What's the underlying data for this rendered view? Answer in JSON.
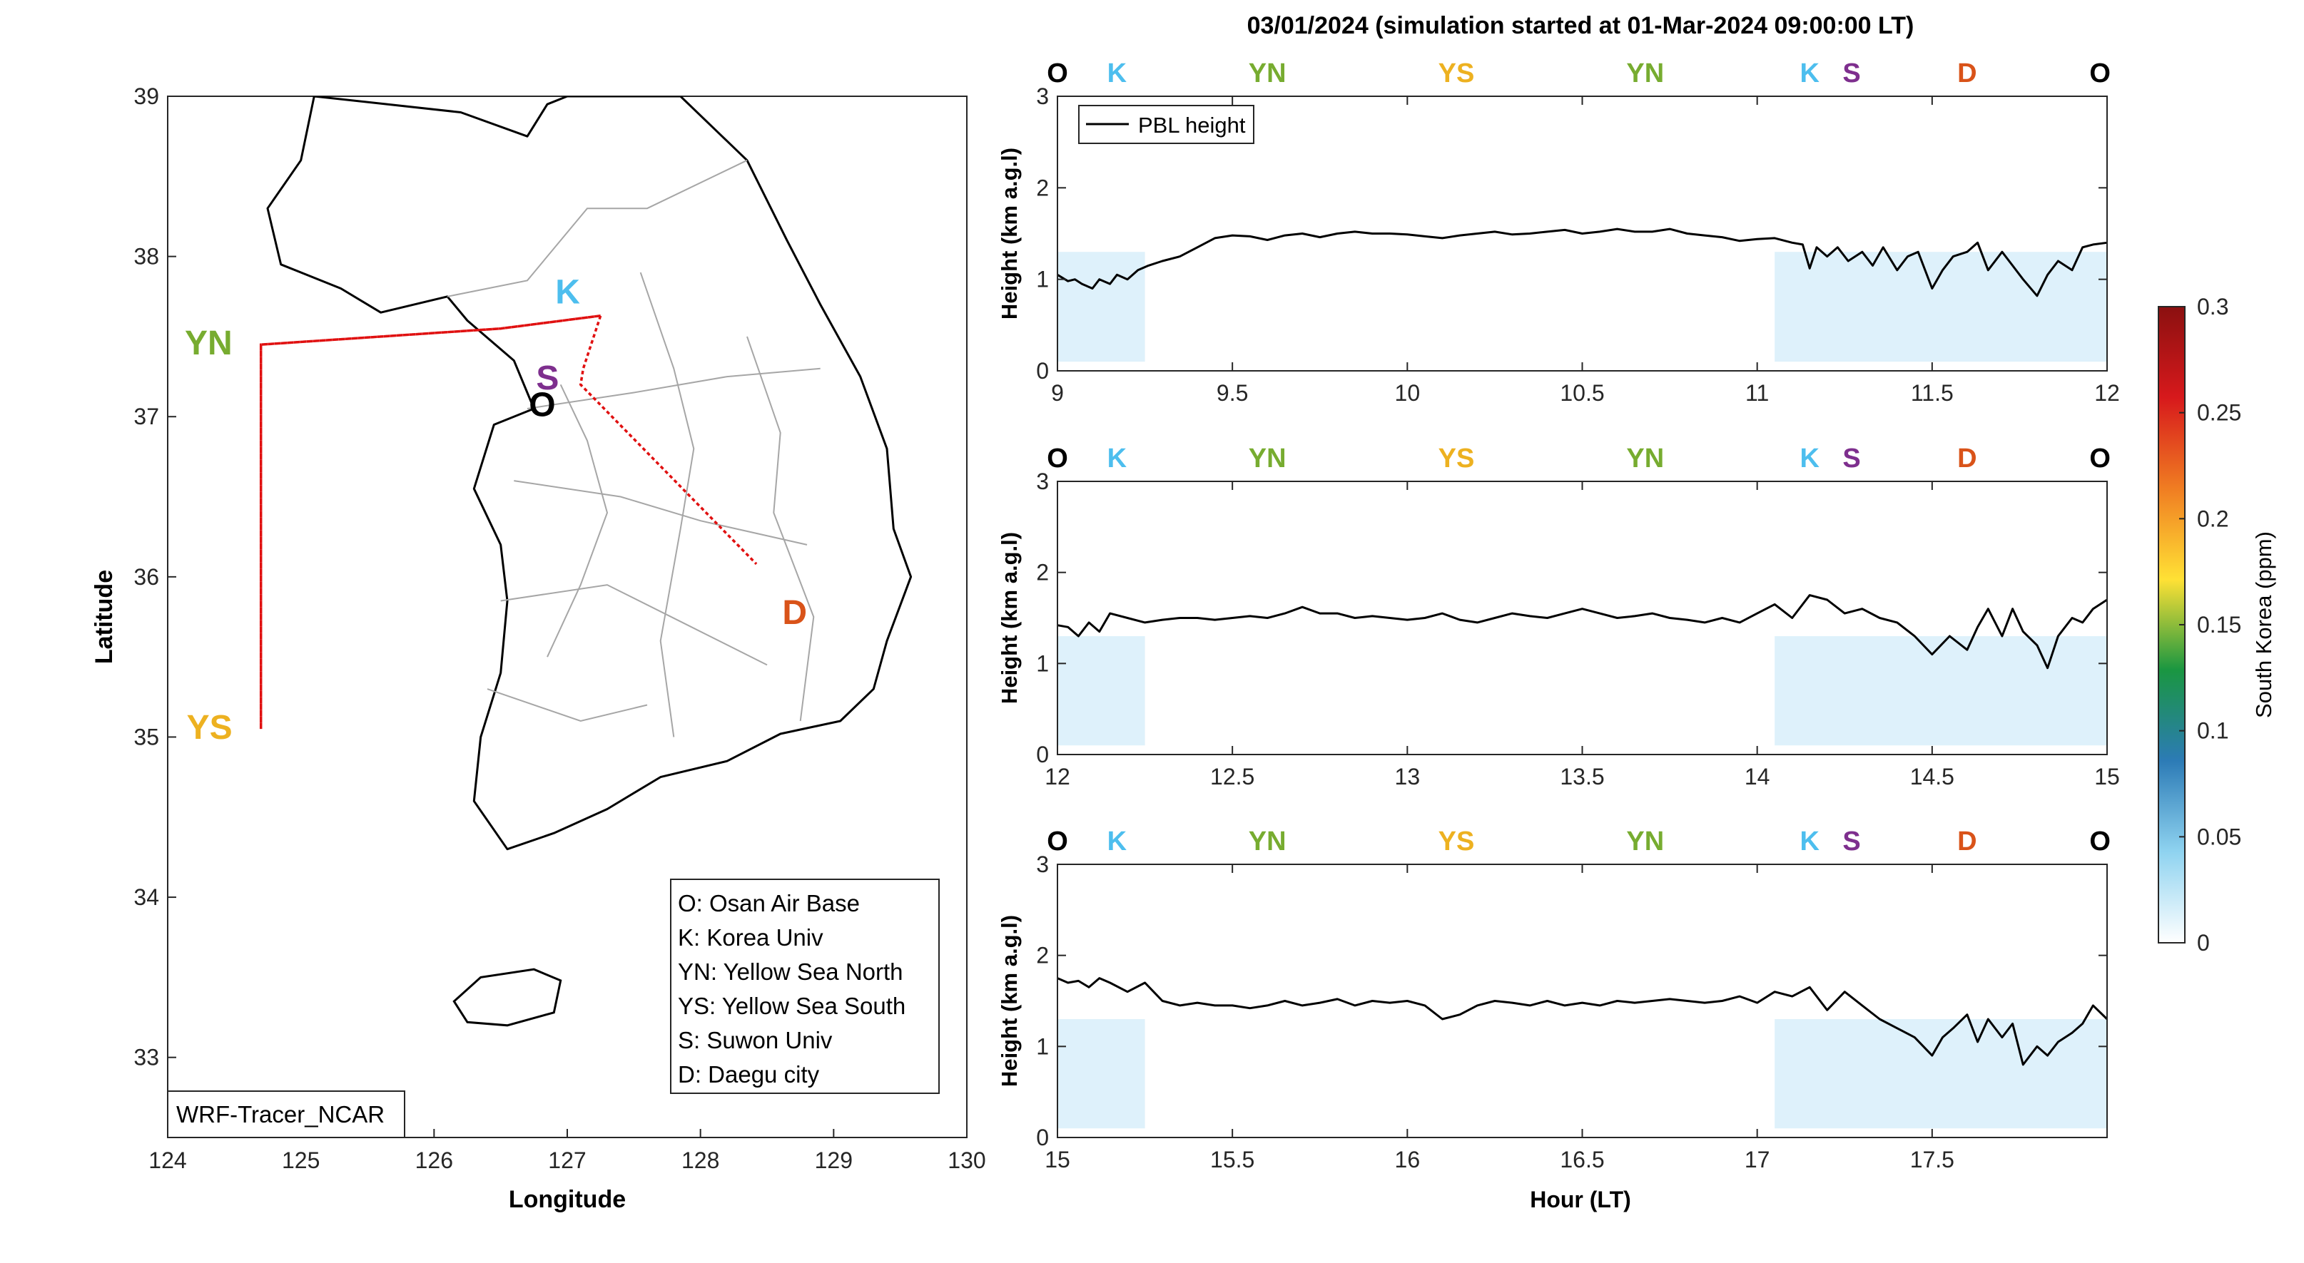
{
  "title": "03/01/2024 (simulation started at 01-Mar-2024 09:00:00 LT)",
  "colors": {
    "O": "#000000",
    "K": "#4DBEEE",
    "YN": "#77AC30",
    "YS": "#EDB120",
    "S": "#7E2F8E",
    "D": "#D95319",
    "track": "#e01010"
  },
  "chart_data": [
    {
      "type": "map",
      "xlabel": "Longitude",
      "ylabel": "Latitude",
      "xlim": [
        124,
        130
      ],
      "ylim": [
        32.5,
        39
      ],
      "xticks": [
        "124",
        "125",
        "126",
        "127",
        "128",
        "129",
        "130"
      ],
      "yticks": [
        "33",
        "34",
        "35",
        "36",
        "37",
        "38",
        "39"
      ],
      "sites": [
        {
          "label": "O",
          "lon": 126.9,
          "lat": 37.08
        },
        {
          "label": "K",
          "lon": 127.03,
          "lat": 37.59
        },
        {
          "label": "YN",
          "lon": 124.7,
          "lat": 37.45
        },
        {
          "label": "YS",
          "lon": 124.7,
          "lat": 35.05
        },
        {
          "label": "S",
          "lon": 126.97,
          "lat": 37.25
        },
        {
          "label": "D",
          "lon": 128.6,
          "lat": 35.87
        }
      ],
      "flight_track": [
        {
          "lon": 127.25,
          "lat": 37.63
        },
        {
          "lon": 126.5,
          "lat": 37.55
        },
        {
          "lon": 124.7,
          "lat": 37.45
        },
        {
          "lon": 124.7,
          "lat": 35.05
        },
        {
          "lon": 124.7,
          "lat": 37.45
        },
        {
          "lon": 126.5,
          "lat": 37.55
        },
        {
          "lon": 127.25,
          "lat": 37.63
        },
        {
          "lon": 127.12,
          "lat": 37.3
        },
        {
          "lon": 127.1,
          "lat": 37.2
        },
        {
          "lon": 128.42,
          "lat": 36.08
        }
      ],
      "legend": [
        "O: Osan Air Base",
        "K: Korea Univ",
        "YN: Yellow Sea North",
        "YS: Yellow Sea South",
        "S: Suwon Univ",
        "D: Daegu city"
      ],
      "model_label": "WRF-Tracer_NCAR"
    },
    {
      "type": "line",
      "ylabel": "Height (km a.g.l)",
      "xlim": [
        9,
        12
      ],
      "ylim": [
        0,
        3
      ],
      "xticks": [
        "9",
        "9.5",
        "10",
        "10.5",
        "11",
        "11.5",
        "12"
      ],
      "yticks": [
        "0",
        "1",
        "2",
        "3"
      ],
      "site_markers": [
        {
          "label": "O",
          "x": 9.0
        },
        {
          "label": "K",
          "x": 9.17
        },
        {
          "label": "YN",
          "x": 9.6
        },
        {
          "label": "YS",
          "x": 10.14
        },
        {
          "label": "YN",
          "x": 10.68
        },
        {
          "label": "K",
          "x": 11.15
        },
        {
          "label": "S",
          "x": 11.27
        },
        {
          "label": "D",
          "x": 11.6
        },
        {
          "label": "O",
          "x": 11.98
        }
      ],
      "legend": [
        "PBL height"
      ],
      "series": [
        {
          "name": "PBL height",
          "x": [
            9.0,
            9.03,
            9.05,
            9.07,
            9.1,
            9.12,
            9.15,
            9.17,
            9.2,
            9.23,
            9.26,
            9.3,
            9.35,
            9.4,
            9.45,
            9.5,
            9.55,
            9.6,
            9.65,
            9.7,
            9.75,
            9.8,
            9.85,
            9.9,
            9.95,
            10.0,
            10.05,
            10.1,
            10.15,
            10.2,
            10.25,
            10.3,
            10.35,
            10.4,
            10.45,
            10.5,
            10.55,
            10.6,
            10.65,
            10.7,
            10.75,
            10.8,
            10.85,
            10.9,
            10.95,
            11.0,
            11.05,
            11.1,
            11.13,
            11.15,
            11.17,
            11.2,
            11.23,
            11.26,
            11.3,
            11.33,
            11.36,
            11.4,
            11.43,
            11.46,
            11.5,
            11.53,
            11.56,
            11.6,
            11.63,
            11.66,
            11.7,
            11.73,
            11.76,
            11.8,
            11.83,
            11.86,
            11.9,
            11.93,
            11.96,
            12.0
          ],
          "values": [
            1.05,
            0.98,
            1.0,
            0.95,
            0.9,
            1.0,
            0.95,
            1.05,
            1.0,
            1.1,
            1.15,
            1.2,
            1.25,
            1.35,
            1.45,
            1.48,
            1.47,
            1.43,
            1.48,
            1.5,
            1.46,
            1.5,
            1.52,
            1.5,
            1.5,
            1.49,
            1.47,
            1.45,
            1.48,
            1.5,
            1.52,
            1.49,
            1.5,
            1.52,
            1.54,
            1.5,
            1.52,
            1.55,
            1.52,
            1.52,
            1.55,
            1.5,
            1.48,
            1.46,
            1.42,
            1.44,
            1.45,
            1.4,
            1.38,
            1.12,
            1.35,
            1.25,
            1.35,
            1.2,
            1.3,
            1.15,
            1.35,
            1.1,
            1.25,
            1.3,
            0.9,
            1.1,
            1.25,
            1.3,
            1.4,
            1.1,
            1.3,
            1.15,
            1.0,
            0.82,
            1.05,
            1.2,
            1.1,
            1.35,
            1.38,
            1.4
          ]
        }
      ],
      "concentration_fields": [
        {
          "x0": 9.0,
          "x1": 9.25,
          "level": 0.02
        },
        {
          "x0": 11.05,
          "x1": 12.0,
          "level": 0.015
        }
      ]
    },
    {
      "type": "line",
      "ylabel": "Height (km a.g.l)",
      "xlim": [
        12,
        15
      ],
      "ylim": [
        0,
        3
      ],
      "xticks": [
        "12",
        "12.5",
        "13",
        "13.5",
        "14",
        "14.5",
        "15"
      ],
      "yticks": [
        "0",
        "1",
        "2",
        "3"
      ],
      "site_markers": [
        {
          "label": "O",
          "x": 12.0
        },
        {
          "label": "K",
          "x": 12.17
        },
        {
          "label": "YN",
          "x": 12.6
        },
        {
          "label": "YS",
          "x": 13.14
        },
        {
          "label": "YN",
          "x": 13.68
        },
        {
          "label": "K",
          "x": 14.15
        },
        {
          "label": "S",
          "x": 14.27
        },
        {
          "label": "D",
          "x": 14.6
        },
        {
          "label": "O",
          "x": 14.98
        }
      ],
      "series": [
        {
          "name": "PBL height",
          "x": [
            12.0,
            12.03,
            12.06,
            12.09,
            12.12,
            12.15,
            12.2,
            12.25,
            12.3,
            12.35,
            12.4,
            12.45,
            12.5,
            12.55,
            12.6,
            12.65,
            12.7,
            12.75,
            12.8,
            12.85,
            12.9,
            12.95,
            13.0,
            13.05,
            13.1,
            13.15,
            13.2,
            13.25,
            13.3,
            13.35,
            13.4,
            13.45,
            13.5,
            13.55,
            13.6,
            13.65,
            13.7,
            13.75,
            13.8,
            13.85,
            13.9,
            13.95,
            14.0,
            14.05,
            14.1,
            14.15,
            14.2,
            14.25,
            14.3,
            14.35,
            14.4,
            14.45,
            14.5,
            14.55,
            14.6,
            14.63,
            14.66,
            14.7,
            14.73,
            14.76,
            14.8,
            14.83,
            14.86,
            14.9,
            14.93,
            14.96,
            15.0
          ],
          "values": [
            1.42,
            1.4,
            1.3,
            1.45,
            1.35,
            1.55,
            1.5,
            1.45,
            1.48,
            1.5,
            1.5,
            1.48,
            1.5,
            1.52,
            1.5,
            1.55,
            1.62,
            1.55,
            1.55,
            1.5,
            1.52,
            1.5,
            1.48,
            1.5,
            1.55,
            1.48,
            1.45,
            1.5,
            1.55,
            1.52,
            1.5,
            1.55,
            1.6,
            1.55,
            1.5,
            1.52,
            1.55,
            1.5,
            1.48,
            1.45,
            1.5,
            1.45,
            1.55,
            1.65,
            1.5,
            1.75,
            1.7,
            1.55,
            1.6,
            1.5,
            1.45,
            1.3,
            1.1,
            1.3,
            1.15,
            1.4,
            1.6,
            1.3,
            1.6,
            1.35,
            1.2,
            0.95,
            1.3,
            1.5,
            1.45,
            1.6,
            1.7
          ]
        }
      ],
      "concentration_fields": [
        {
          "x0": 12.0,
          "x1": 12.25,
          "level": 0.02
        },
        {
          "x0": 14.05,
          "x1": 15.0,
          "level": 0.015
        }
      ]
    },
    {
      "type": "line",
      "ylabel": "Height (km a.g.l)",
      "xlabel": "Hour (LT)",
      "xlim": [
        15,
        18
      ],
      "ylim": [
        0,
        3
      ],
      "xticks": [
        "15",
        "15.5",
        "16",
        "16.5",
        "17",
        "17.5"
      ],
      "yticks": [
        "0",
        "1",
        "2",
        "3"
      ],
      "site_markers": [
        {
          "label": "O",
          "x": 15.0
        },
        {
          "label": "K",
          "x": 15.17
        },
        {
          "label": "YN",
          "x": 15.6
        },
        {
          "label": "YS",
          "x": 16.14
        },
        {
          "label": "YN",
          "x": 16.68
        },
        {
          "label": "K",
          "x": 17.15
        },
        {
          "label": "S",
          "x": 17.27
        },
        {
          "label": "D",
          "x": 17.6
        },
        {
          "label": "O",
          "x": 17.98
        }
      ],
      "series": [
        {
          "name": "PBL height",
          "x": [
            15.0,
            15.03,
            15.06,
            15.09,
            15.12,
            15.15,
            15.2,
            15.25,
            15.3,
            15.35,
            15.4,
            15.45,
            15.5,
            15.55,
            15.6,
            15.65,
            15.7,
            15.75,
            15.8,
            15.85,
            15.9,
            15.95,
            16.0,
            16.05,
            16.1,
            16.15,
            16.2,
            16.25,
            16.3,
            16.35,
            16.4,
            16.45,
            16.5,
            16.55,
            16.6,
            16.65,
            16.7,
            16.75,
            16.8,
            16.85,
            16.9,
            16.95,
            17.0,
            17.05,
            17.1,
            17.15,
            17.2,
            17.25,
            17.3,
            17.35,
            17.4,
            17.45,
            17.5,
            17.53,
            17.56,
            17.6,
            17.63,
            17.66,
            17.7,
            17.73,
            17.76,
            17.8,
            17.83,
            17.86,
            17.9,
            17.93,
            17.96,
            18.0
          ],
          "values": [
            1.75,
            1.7,
            1.72,
            1.65,
            1.75,
            1.7,
            1.6,
            1.7,
            1.5,
            1.45,
            1.48,
            1.45,
            1.45,
            1.42,
            1.45,
            1.5,
            1.45,
            1.48,
            1.52,
            1.45,
            1.5,
            1.48,
            1.5,
            1.45,
            1.3,
            1.35,
            1.45,
            1.5,
            1.48,
            1.45,
            1.5,
            1.45,
            1.48,
            1.45,
            1.5,
            1.48,
            1.5,
            1.52,
            1.5,
            1.48,
            1.5,
            1.55,
            1.48,
            1.6,
            1.55,
            1.65,
            1.4,
            1.6,
            1.45,
            1.3,
            1.2,
            1.1,
            0.9,
            1.1,
            1.2,
            1.35,
            1.05,
            1.3,
            1.1,
            1.25,
            0.8,
            1.0,
            0.9,
            1.05,
            1.15,
            1.25,
            1.45,
            1.3
          ]
        }
      ],
      "concentration_fields": [
        {
          "x0": 15.0,
          "x1": 15.25,
          "level": 0.02
        },
        {
          "x0": 17.05,
          "x1": 18.0,
          "level": 0.015
        }
      ]
    }
  ],
  "colorbar": {
    "label": "South Korea (ppm)",
    "min": 0,
    "max": 0.3,
    "ticks": [
      "0",
      "0.05",
      "0.1",
      "0.15",
      "0.2",
      "0.25",
      "0.3"
    ],
    "stops": [
      "#ffffff",
      "#8fd3f0",
      "#2c7bb6",
      "#1a9641",
      "#ffe135",
      "#f07d22",
      "#d7191c",
      "#8b1010"
    ]
  }
}
